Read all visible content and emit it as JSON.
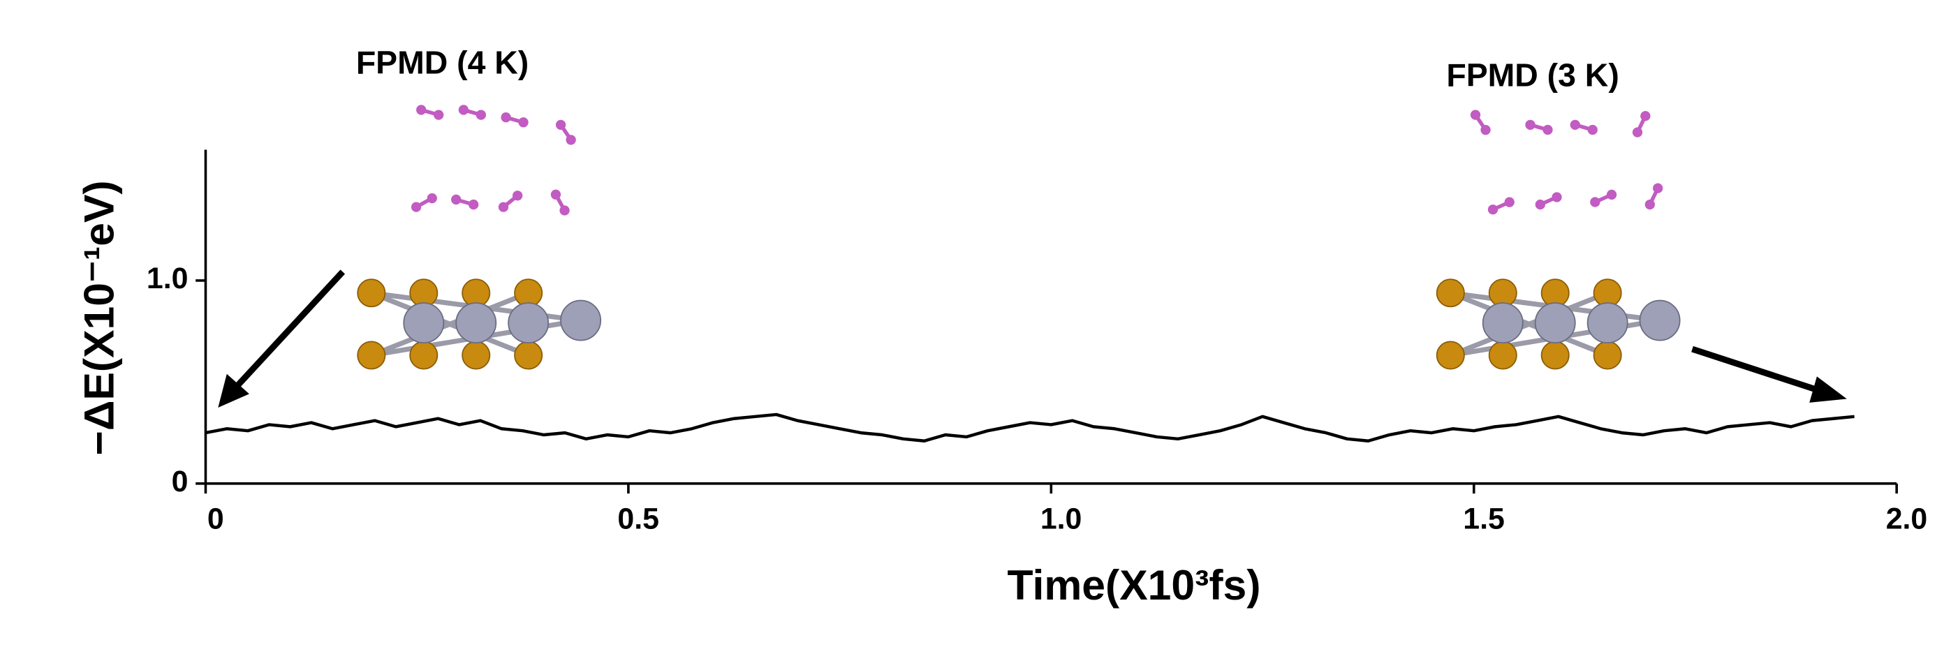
{
  "chart_data": {
    "type": "line",
    "x_label": "Time(X10³fs)",
    "y_label": "−ΔE(X10⁻¹eV)",
    "annotations": [
      "FPMD (4 K)",
      "FPMD (3 K)"
    ],
    "x": [
      0,
      0.025,
      0.05,
      0.075,
      0.1,
      0.125,
      0.15,
      0.175,
      0.2,
      0.225,
      0.25,
      0.275,
      0.3,
      0.325,
      0.35,
      0.375,
      0.4,
      0.425,
      0.45,
      0.475,
      0.5,
      0.525,
      0.55,
      0.575,
      0.6,
      0.625,
      0.65,
      0.675,
      0.7,
      0.725,
      0.75,
      0.775,
      0.8,
      0.825,
      0.85,
      0.875,
      0.9,
      0.925,
      0.95,
      0.975,
      1.0,
      1.025,
      1.05,
      1.075,
      1.1,
      1.125,
      1.15,
      1.175,
      1.2,
      1.225,
      1.25,
      1.275,
      1.3,
      1.325,
      1.35,
      1.375,
      1.4,
      1.425,
      1.45,
      1.475,
      1.5,
      1.525,
      1.55,
      1.575,
      1.6,
      1.625,
      1.65,
      1.675,
      1.7,
      1.725,
      1.75,
      1.775,
      1.8,
      1.825,
      1.85,
      1.875,
      1.9,
      1.925,
      1.95
    ],
    "values": [
      0.25,
      0.27,
      0.26,
      0.29,
      0.28,
      0.3,
      0.27,
      0.29,
      0.31,
      0.28,
      0.3,
      0.32,
      0.29,
      0.31,
      0.27,
      0.26,
      0.24,
      0.25,
      0.22,
      0.24,
      0.23,
      0.26,
      0.25,
      0.27,
      0.3,
      0.32,
      0.33,
      0.34,
      0.31,
      0.29,
      0.27,
      0.25,
      0.24,
      0.22,
      0.21,
      0.24,
      0.23,
      0.26,
      0.28,
      0.3,
      0.29,
      0.31,
      0.28,
      0.27,
      0.25,
      0.23,
      0.22,
      0.24,
      0.26,
      0.29,
      0.33,
      0.3,
      0.27,
      0.25,
      0.22,
      0.21,
      0.24,
      0.26,
      0.25,
      0.27,
      0.26,
      0.28,
      0.29,
      0.31,
      0.33,
      0.3,
      0.27,
      0.25,
      0.24,
      0.26,
      0.27,
      0.25,
      0.28,
      0.29,
      0.3,
      0.28,
      0.31,
      0.32,
      0.33
    ],
    "color": "#000000",
    "xlim": [
      0,
      2.0
    ],
    "xticks": [
      0,
      0.5,
      {
        "value": 1,
        "label": "1.0"
      },
      1.5,
      {
        "value": 2,
        "label": "2.0"
      }
    ],
    "ylim": [
      0,
      1.6
    ],
    "yticks": [
      0,
      {
        "value": 1,
        "label": "1.0"
      }
    ],
    "grid": false
  }
}
